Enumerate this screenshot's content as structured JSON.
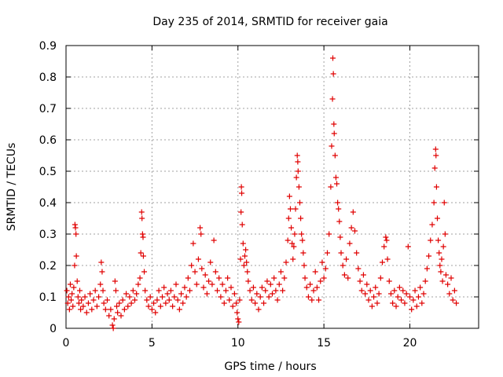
{
  "chart_data": {
    "type": "scatter",
    "title": "Day 235 of 2014, SRMTID for receiver gaia",
    "xlabel": "GPS time / hours",
    "ylabel": "SRMTID / TECUs",
    "xlim": [
      0,
      24
    ],
    "ylim": [
      0,
      0.9
    ],
    "xticks": [
      0,
      5,
      10,
      15,
      20
    ],
    "xtick_labels": [
      "0",
      "5",
      "10",
      "15",
      "20"
    ],
    "yticks": [
      0,
      0.1,
      0.2,
      0.3,
      0.4,
      0.5,
      0.6,
      0.7,
      0.8,
      0.9
    ],
    "ytick_labels": [
      "0",
      "0.1",
      "0.2",
      "0.3",
      "0.4",
      "0.5",
      "0.6",
      "0.7",
      "0.8",
      "0.9"
    ],
    "grid": true,
    "marker": "+",
    "color": "#e00000",
    "series": [
      {
        "name": "SRMTID",
        "points": [
          [
            0.05,
            0.12
          ],
          [
            0.1,
            0.08
          ],
          [
            0.15,
            0.1
          ],
          [
            0.2,
            0.06
          ],
          [
            0.25,
            0.14
          ],
          [
            0.3,
            0.09
          ],
          [
            0.35,
            0.11
          ],
          [
            0.4,
            0.07
          ],
          [
            0.45,
            0.13
          ],
          [
            0.5,
            0.2
          ],
          [
            0.52,
            0.33
          ],
          [
            0.55,
            0.32
          ],
          [
            0.58,
            0.3
          ],
          [
            0.6,
            0.23
          ],
          [
            0.65,
            0.15
          ],
          [
            0.7,
            0.1
          ],
          [
            0.75,
            0.08
          ],
          [
            0.8,
            0.12
          ],
          [
            0.85,
            0.06
          ],
          [
            0.9,
            0.09
          ],
          [
            1.0,
            0.07
          ],
          [
            1.1,
            0.1
          ],
          [
            1.2,
            0.05
          ],
          [
            1.3,
            0.08
          ],
          [
            1.4,
            0.11
          ],
          [
            1.5,
            0.06
          ],
          [
            1.6,
            0.09
          ],
          [
            1.7,
            0.12
          ],
          [
            1.8,
            0.07
          ],
          [
            1.9,
            0.1
          ],
          [
            2.0,
            0.14
          ],
          [
            2.05,
            0.21
          ],
          [
            2.1,
            0.18
          ],
          [
            2.15,
            0.12
          ],
          [
            2.2,
            0.08
          ],
          [
            2.3,
            0.06
          ],
          [
            2.4,
            0.09
          ],
          [
            2.5,
            0.04
          ],
          [
            2.6,
            0.06
          ],
          [
            2.7,
            0.01
          ],
          [
            2.75,
            0.0
          ],
          [
            2.8,
            0.03
          ],
          [
            2.85,
            0.15
          ],
          [
            2.9,
            0.12
          ],
          [
            2.95,
            0.07
          ],
          [
            3.0,
            0.05
          ],
          [
            3.1,
            0.08
          ],
          [
            3.2,
            0.04
          ],
          [
            3.3,
            0.09
          ],
          [
            3.4,
            0.06
          ],
          [
            3.5,
            0.11
          ],
          [
            3.6,
            0.07
          ],
          [
            3.7,
            0.1
          ],
          [
            3.8,
            0.08
          ],
          [
            3.9,
            0.12
          ],
          [
            4.0,
            0.09
          ],
          [
            4.1,
            0.11
          ],
          [
            4.2,
            0.14
          ],
          [
            4.3,
            0.16
          ],
          [
            4.35,
            0.24
          ],
          [
            4.4,
            0.37
          ],
          [
            4.42,
            0.35
          ],
          [
            4.45,
            0.3
          ],
          [
            4.48,
            0.29
          ],
          [
            4.5,
            0.23
          ],
          [
            4.55,
            0.18
          ],
          [
            4.6,
            0.12
          ],
          [
            4.7,
            0.09
          ],
          [
            4.8,
            0.07
          ],
          [
            4.9,
            0.1
          ],
          [
            5.0,
            0.06
          ],
          [
            5.1,
            0.08
          ],
          [
            5.2,
            0.05
          ],
          [
            5.3,
            0.09
          ],
          [
            5.4,
            0.12
          ],
          [
            5.5,
            0.07
          ],
          [
            5.6,
            0.1
          ],
          [
            5.7,
            0.13
          ],
          [
            5.8,
            0.08
          ],
          [
            5.9,
            0.11
          ],
          [
            6.0,
            0.09
          ],
          [
            6.1,
            0.12
          ],
          [
            6.2,
            0.07
          ],
          [
            6.3,
            0.1
          ],
          [
            6.4,
            0.14
          ],
          [
            6.5,
            0.09
          ],
          [
            6.6,
            0.06
          ],
          [
            6.7,
            0.11
          ],
          [
            6.8,
            0.08
          ],
          [
            6.9,
            0.13
          ],
          [
            7.0,
            0.1
          ],
          [
            7.1,
            0.16
          ],
          [
            7.2,
            0.12
          ],
          [
            7.3,
            0.2
          ],
          [
            7.4,
            0.27
          ],
          [
            7.5,
            0.18
          ],
          [
            7.6,
            0.14
          ],
          [
            7.7,
            0.22
          ],
          [
            7.8,
            0.32
          ],
          [
            7.85,
            0.3
          ],
          [
            7.9,
            0.19
          ],
          [
            8.0,
            0.13
          ],
          [
            8.1,
            0.17
          ],
          [
            8.2,
            0.11
          ],
          [
            8.3,
            0.15
          ],
          [
            8.4,
            0.21
          ],
          [
            8.5,
            0.14
          ],
          [
            8.6,
            0.28
          ],
          [
            8.7,
            0.18
          ],
          [
            8.8,
            0.12
          ],
          [
            8.9,
            0.16
          ],
          [
            9.0,
            0.1
          ],
          [
            9.1,
            0.14
          ],
          [
            9.2,
            0.08
          ],
          [
            9.3,
            0.12
          ],
          [
            9.4,
            0.16
          ],
          [
            9.5,
            0.09
          ],
          [
            9.6,
            0.13
          ],
          [
            9.7,
            0.07
          ],
          [
            9.8,
            0.11
          ],
          [
            9.9,
            0.08
          ],
          [
            9.95,
            0.05
          ],
          [
            10.0,
            0.03
          ],
          [
            10.05,
            0.02
          ],
          [
            10.1,
            0.09
          ],
          [
            10.15,
            0.22
          ],
          [
            10.18,
            0.37
          ],
          [
            10.2,
            0.45
          ],
          [
            10.22,
            0.43
          ],
          [
            10.25,
            0.33
          ],
          [
            10.3,
            0.27
          ],
          [
            10.35,
            0.2
          ],
          [
            10.4,
            0.23
          ],
          [
            10.45,
            0.25
          ],
          [
            10.5,
            0.21
          ],
          [
            10.55,
            0.18
          ],
          [
            10.6,
            0.15
          ],
          [
            10.7,
            0.12
          ],
          [
            10.8,
            0.09
          ],
          [
            10.9,
            0.13
          ],
          [
            11.0,
            0.08
          ],
          [
            11.1,
            0.11
          ],
          [
            11.2,
            0.06
          ],
          [
            11.3,
            0.1
          ],
          [
            11.4,
            0.13
          ],
          [
            11.5,
            0.08
          ],
          [
            11.6,
            0.12
          ],
          [
            11.7,
            0.15
          ],
          [
            11.8,
            0.1
          ],
          [
            11.9,
            0.14
          ],
          [
            12.0,
            0.11
          ],
          [
            12.1,
            0.16
          ],
          [
            12.2,
            0.12
          ],
          [
            12.3,
            0.09
          ],
          [
            12.4,
            0.14
          ],
          [
            12.5,
            0.18
          ],
          [
            12.6,
            0.12
          ],
          [
            12.7,
            0.16
          ],
          [
            12.8,
            0.21
          ],
          [
            12.9,
            0.28
          ],
          [
            12.95,
            0.35
          ],
          [
            13.0,
            0.42
          ],
          [
            13.05,
            0.38
          ],
          [
            13.1,
            0.32
          ],
          [
            13.15,
            0.27
          ],
          [
            13.2,
            0.22
          ],
          [
            13.25,
            0.26
          ],
          [
            13.3,
            0.3
          ],
          [
            13.35,
            0.38
          ],
          [
            13.4,
            0.48
          ],
          [
            13.45,
            0.55
          ],
          [
            13.48,
            0.53
          ],
          [
            13.5,
            0.5
          ],
          [
            13.55,
            0.45
          ],
          [
            13.6,
            0.4
          ],
          [
            13.65,
            0.35
          ],
          [
            13.7,
            0.3
          ],
          [
            13.75,
            0.28
          ],
          [
            13.8,
            0.24
          ],
          [
            13.85,
            0.2
          ],
          [
            13.9,
            0.16
          ],
          [
            14.0,
            0.13
          ],
          [
            14.1,
            0.1
          ],
          [
            14.2,
            0.14
          ],
          [
            14.3,
            0.09
          ],
          [
            14.4,
            0.12
          ],
          [
            14.5,
            0.18
          ],
          [
            14.6,
            0.13
          ],
          [
            14.7,
            0.09
          ],
          [
            14.8,
            0.15
          ],
          [
            14.9,
            0.21
          ],
          [
            15.0,
            0.16
          ],
          [
            15.1,
            0.19
          ],
          [
            15.2,
            0.24
          ],
          [
            15.3,
            0.3
          ],
          [
            15.4,
            0.45
          ],
          [
            15.45,
            0.58
          ],
          [
            15.5,
            0.73
          ],
          [
            15.52,
            0.86
          ],
          [
            15.55,
            0.81
          ],
          [
            15.58,
            0.65
          ],
          [
            15.6,
            0.62
          ],
          [
            15.65,
            0.55
          ],
          [
            15.7,
            0.48
          ],
          [
            15.75,
            0.46
          ],
          [
            15.8,
            0.4
          ],
          [
            15.85,
            0.38
          ],
          [
            15.9,
            0.34
          ],
          [
            15.95,
            0.29
          ],
          [
            16.0,
            0.24
          ],
          [
            16.1,
            0.2
          ],
          [
            16.2,
            0.17
          ],
          [
            16.3,
            0.22
          ],
          [
            16.4,
            0.16
          ],
          [
            16.5,
            0.27
          ],
          [
            16.6,
            0.32
          ],
          [
            16.7,
            0.37
          ],
          [
            16.8,
            0.31
          ],
          [
            16.9,
            0.24
          ],
          [
            17.0,
            0.19
          ],
          [
            17.1,
            0.15
          ],
          [
            17.2,
            0.12
          ],
          [
            17.3,
            0.17
          ],
          [
            17.4,
            0.11
          ],
          [
            17.5,
            0.14
          ],
          [
            17.6,
            0.09
          ],
          [
            17.7,
            0.12
          ],
          [
            17.8,
            0.07
          ],
          [
            17.9,
            0.1
          ],
          [
            18.0,
            0.13
          ],
          [
            18.1,
            0.08
          ],
          [
            18.2,
            0.11
          ],
          [
            18.3,
            0.16
          ],
          [
            18.4,
            0.21
          ],
          [
            18.5,
            0.26
          ],
          [
            18.6,
            0.29
          ],
          [
            18.65,
            0.28
          ],
          [
            18.7,
            0.22
          ],
          [
            18.8,
            0.15
          ],
          [
            18.9,
            0.11
          ],
          [
            19.0,
            0.08
          ],
          [
            19.1,
            0.12
          ],
          [
            19.2,
            0.07
          ],
          [
            19.3,
            0.1
          ],
          [
            19.4,
            0.13
          ],
          [
            19.5,
            0.09
          ],
          [
            19.6,
            0.12
          ],
          [
            19.7,
            0.08
          ],
          [
            19.8,
            0.11
          ],
          [
            19.9,
            0.26
          ],
          [
            20.0,
            0.1
          ],
          [
            20.1,
            0.06
          ],
          [
            20.2,
            0.09
          ],
          [
            20.3,
            0.12
          ],
          [
            20.4,
            0.07
          ],
          [
            20.5,
            0.1
          ],
          [
            20.6,
            0.13
          ],
          [
            20.7,
            0.08
          ],
          [
            20.8,
            0.11
          ],
          [
            20.9,
            0.15
          ],
          [
            21.0,
            0.19
          ],
          [
            21.1,
            0.23
          ],
          [
            21.2,
            0.28
          ],
          [
            21.3,
            0.33
          ],
          [
            21.4,
            0.4
          ],
          [
            21.45,
            0.51
          ],
          [
            21.5,
            0.57
          ],
          [
            21.52,
            0.55
          ],
          [
            21.55,
            0.45
          ],
          [
            21.6,
            0.35
          ],
          [
            21.65,
            0.28
          ],
          [
            21.7,
            0.24
          ],
          [
            21.75,
            0.2
          ],
          [
            21.8,
            0.18
          ],
          [
            21.85,
            0.22
          ],
          [
            21.9,
            0.15
          ],
          [
            21.95,
            0.26
          ],
          [
            22.0,
            0.4
          ],
          [
            22.05,
            0.3
          ],
          [
            22.1,
            0.17
          ],
          [
            22.2,
            0.14
          ],
          [
            22.3,
            0.11
          ],
          [
            22.4,
            0.16
          ],
          [
            22.5,
            0.09
          ],
          [
            22.6,
            0.12
          ],
          [
            22.7,
            0.08
          ]
        ]
      }
    ]
  }
}
